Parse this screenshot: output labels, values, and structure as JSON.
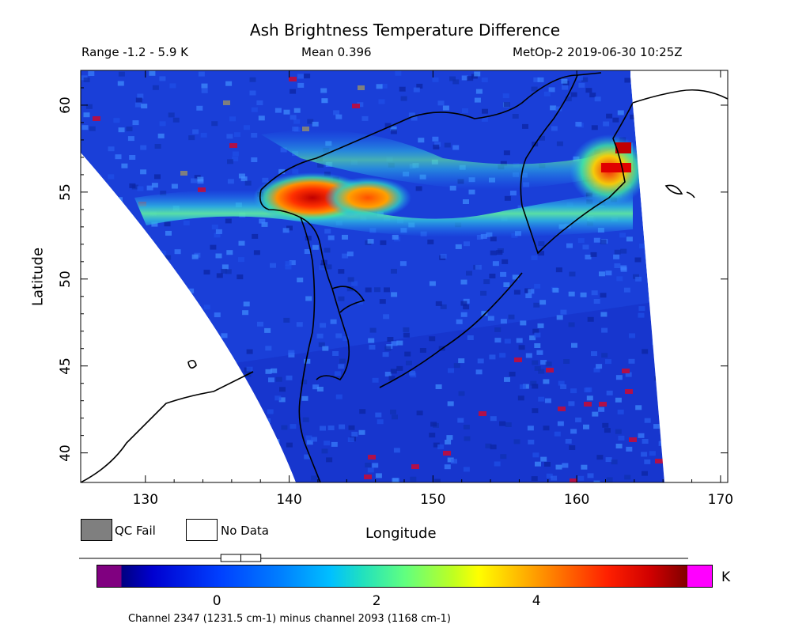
{
  "title": "Ash Brightness Temperature Difference",
  "header": {
    "range": "Range -1.2 - 5.9 K",
    "mean": "Mean 0.396",
    "satellite_time": "MetOp-2 2019-06-30 10:25Z"
  },
  "axes": {
    "xlabel": "Longitude",
    "ylabel": "Latitude",
    "x_ticks": [
      "130",
      "140",
      "150",
      "160",
      "170"
    ],
    "y_ticks": [
      "40",
      "45",
      "50",
      "55",
      "60"
    ],
    "x_range": [
      125.5,
      170.5
    ],
    "y_range": [
      38.3,
      62.0
    ]
  },
  "legend": {
    "qc_fail": "QC Fail",
    "no_data": "No Data",
    "qc_fail_color": "#7f7f7f",
    "no_data_color": "#ffffff"
  },
  "colorbar": {
    "ticks": [
      "0",
      "2",
      "4"
    ],
    "unit": "K",
    "range": [
      -1.2,
      5.9
    ],
    "under_color": "#800080",
    "over_color": "#ff00ff",
    "boxplot_min": -1.2,
    "boxplot_q1": 0.05,
    "boxplot_median": 0.3,
    "boxplot_q3": 0.55,
    "boxplot_max": 5.9
  },
  "footnote": "Channel 2347 (1231.5 cm-1) minus channel 2093 (1168 cm-1)",
  "map": {
    "swath_background_color": "#1a3fd8",
    "ash_plume_peak_lon": 141.5,
    "ash_plume_peak_lat": 54.5,
    "coastline_color": "#000000"
  }
}
